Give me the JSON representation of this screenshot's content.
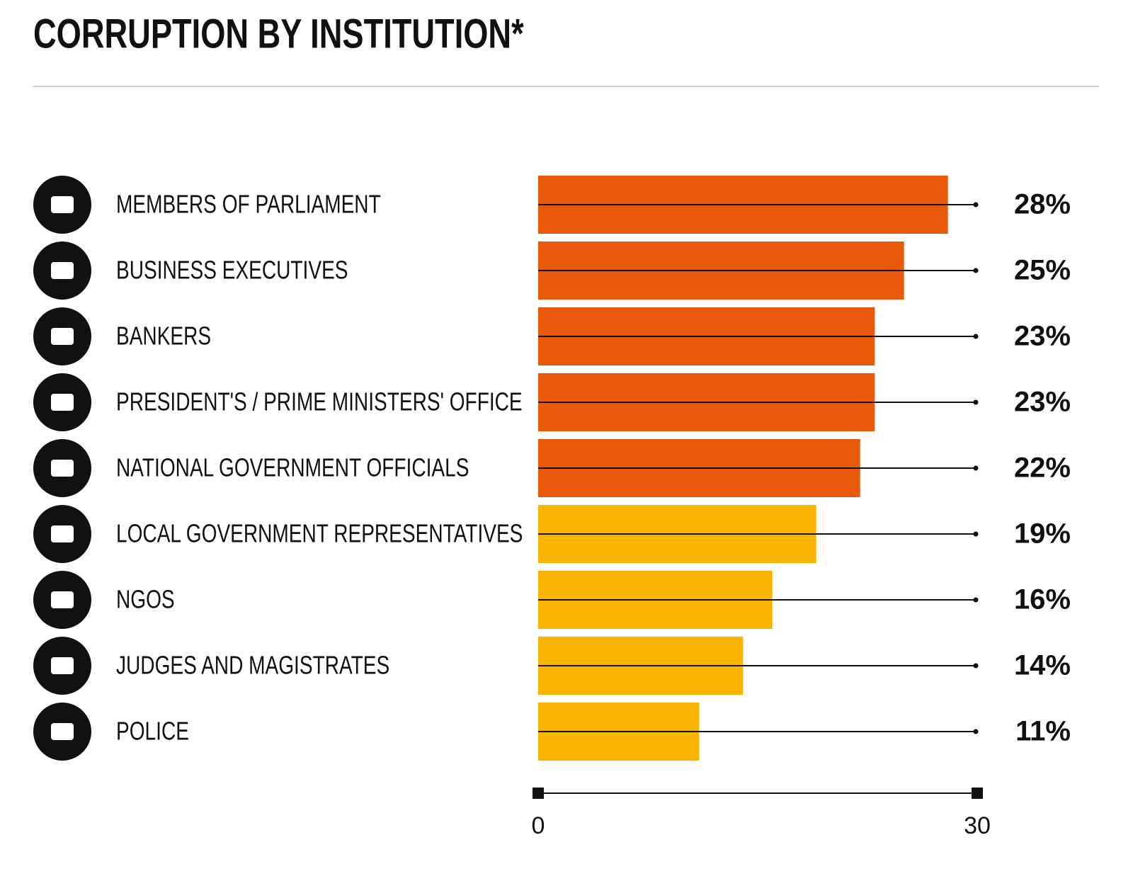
{
  "chart_data": {
    "type": "hbar",
    "title": "CORRUPTION BY INSTITUTION*",
    "categories": [
      "MEMBERS OF PARLIAMENT",
      "BUSINESS EXECUTIVES",
      "BANKERS",
      "PRESIDENT'S / PRIME MINISTERS' OFFICE",
      "NATIONAL GOVERNMENT OFFICIALS",
      "LOCAL GOVERNMENT REPRESENTATIVES",
      "NGOS",
      "JUDGES AND MAGISTRATES",
      "POLICE"
    ],
    "values": [
      28,
      25,
      23,
      23,
      22,
      19,
      16,
      14,
      11
    ],
    "value_labels": [
      "28%",
      "25%",
      "23%",
      "23%",
      "22%",
      "19%",
      "16%",
      "14%",
      "11%"
    ],
    "colors": [
      "#e8590c",
      "#e8590c",
      "#e8590c",
      "#e8590c",
      "#e8590c",
      "#f8b400",
      "#f8b400",
      "#f8b400",
      "#f8b400"
    ],
    "xlim": [
      0,
      30
    ],
    "xticks": [
      0,
      30
    ]
  }
}
